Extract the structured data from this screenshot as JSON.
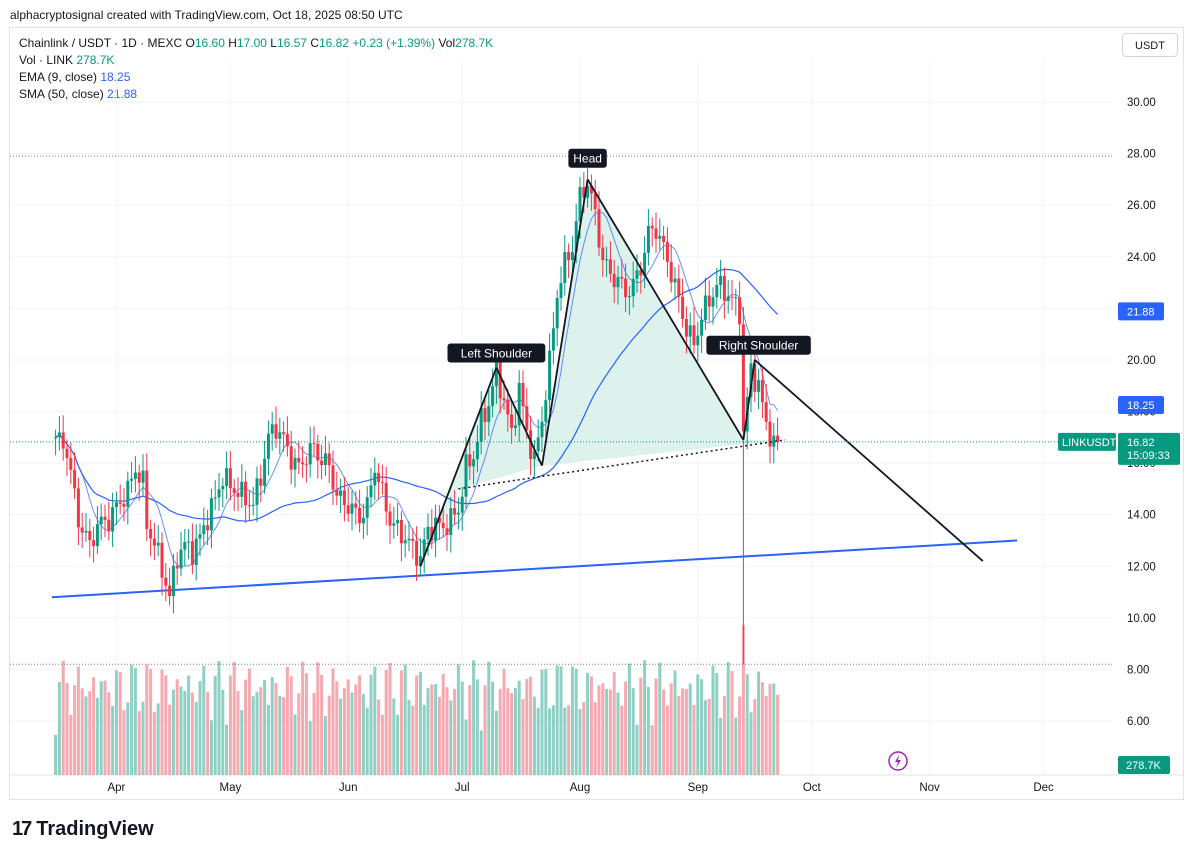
{
  "header": {
    "credit": "alphacryptosignal created with TradingView.com, Oct 18, 2025 08:50 UTC"
  },
  "legend": {
    "symbol": "Chainlink / USDT · 1D · MEXC",
    "o_label": "O",
    "o_val": "16.60",
    "h_label": "H",
    "h_val": "17.00",
    "l_label": "L",
    "l_val": "16.57",
    "c_label": "C",
    "c_val": "16.82",
    "change": "+0.23 (+1.39%)",
    "vol_label": "Vol",
    "vol_val": "278.7K",
    "vol_row_label": "Vol · LINK",
    "vol_row_val": "278.7K",
    "ema_label": "EMA (9, close)",
    "ema_val": "18.25",
    "sma_label": "SMA (50, close)",
    "sma_val": "21.88"
  },
  "currency_button": "USDT",
  "footer": {
    "brand": "TradingView"
  },
  "colors": {
    "up": "#089981",
    "down": "#f23645",
    "ema": "#2962ff",
    "sma": "#2962ff",
    "volume_up": "#8fd0c4",
    "volume_down": "#f7a9b0",
    "support": "#2962ff",
    "pattern_fill": "#d4efe9"
  },
  "chart_data": {
    "type": "candlestick",
    "symbol": "Chainlink / USDT",
    "interval": "1D",
    "ylim": [
      5,
      31
    ],
    "y_ticks": [
      "30.00",
      "28.00",
      "26.00",
      "24.00",
      "22.00",
      "20.00",
      "18.00",
      "16.00",
      "14.00",
      "12.00",
      "10.00",
      "8.00",
      "6.00"
    ],
    "x_ticks": [
      "Apr",
      "May",
      "Jun",
      "Jul",
      "Aug",
      "Sep",
      "Oct",
      "Nov",
      "Dec"
    ],
    "x_tick_days": [
      16,
      46,
      77,
      107,
      138,
      169,
      199,
      230,
      260
    ],
    "x_range_days": [
      -12,
      278
    ],
    "price_series": {
      "start_day": 0,
      "points": [
        [
          0,
          17.0
        ],
        [
          3,
          16.5
        ],
        [
          6,
          13.8
        ],
        [
          9,
          12.8
        ],
        [
          11,
          13.6
        ],
        [
          14,
          13.8
        ],
        [
          16,
          14.3
        ],
        [
          19,
          14.9
        ],
        [
          21,
          15.8
        ],
        [
          23,
          15.2
        ],
        [
          24,
          13.6
        ],
        [
          26,
          12.9
        ],
        [
          28,
          11.9
        ],
        [
          30,
          10.8
        ],
        [
          32,
          12.4
        ],
        [
          34,
          12.8
        ],
        [
          36,
          12.6
        ],
        [
          38,
          13.1
        ],
        [
          40,
          13.9
        ],
        [
          42,
          14.6
        ],
        [
          44,
          15.5
        ],
        [
          46,
          15.1
        ],
        [
          48,
          14.9
        ],
        [
          50,
          14.6
        ],
        [
          52,
          14.4
        ],
        [
          54,
          15.5
        ],
        [
          56,
          17.0
        ],
        [
          58,
          17.4
        ],
        [
          60,
          16.9
        ],
        [
          62,
          16.2
        ],
        [
          64,
          15.8
        ],
        [
          66,
          16.3
        ],
        [
          68,
          16.6
        ],
        [
          70,
          16.1
        ],
        [
          72,
          15.9
        ],
        [
          74,
          14.7
        ],
        [
          76,
          14.5
        ],
        [
          78,
          14.2
        ],
        [
          80,
          13.9
        ],
        [
          82,
          14.3
        ],
        [
          84,
          15.9
        ],
        [
          86,
          14.8
        ],
        [
          88,
          13.8
        ],
        [
          90,
          13.4
        ],
        [
          92,
          13.1
        ],
        [
          94,
          12.7
        ],
        [
          96,
          12.3
        ],
        [
          98,
          13.4
        ],
        [
          100,
          13.6
        ],
        [
          102,
          13.5
        ],
        [
          104,
          13.8
        ],
        [
          106,
          14.2
        ],
        [
          108,
          15.8
        ],
        [
          110,
          16.3
        ],
        [
          112,
          17.6
        ],
        [
          114,
          18.3
        ],
        [
          116,
          19.6
        ],
        [
          118,
          18.4
        ],
        [
          120,
          17.1
        ],
        [
          122,
          18.9
        ],
        [
          124,
          17.2
        ],
        [
          126,
          16.1
        ],
        [
          128,
          17.7
        ],
        [
          130,
          19.9
        ],
        [
          132,
          22.6
        ],
        [
          134,
          23.7
        ],
        [
          136,
          24.4
        ],
        [
          138,
          26.3
        ],
        [
          140,
          26.9
        ],
        [
          142,
          25.6
        ],
        [
          144,
          23.9
        ],
        [
          146,
          23.3
        ],
        [
          148,
          23.1
        ],
        [
          150,
          22.6
        ],
        [
          152,
          22.9
        ],
        [
          154,
          23.6
        ],
        [
          156,
          24.9
        ],
        [
          158,
          25.1
        ],
        [
          160,
          24.3
        ],
        [
          162,
          23.4
        ],
        [
          164,
          22.3
        ],
        [
          166,
          21.2
        ],
        [
          168,
          20.6
        ],
        [
          170,
          21.7
        ],
        [
          172,
          22.3
        ],
        [
          174,
          22.9
        ],
        [
          176,
          22.7
        ],
        [
          178,
          22.3
        ],
        [
          180,
          21.9
        ],
        [
          181,
          17.1
        ],
        [
          183,
          19.7
        ],
        [
          185,
          18.9
        ],
        [
          187,
          17.6
        ],
        [
          189,
          16.6
        ],
        [
          190,
          16.82
        ]
      ]
    },
    "volume_label": "278.7K",
    "current_price": "16.82",
    "current_price_label": "LINKUSDT",
    "countdown": "15:09:33",
    "ema_value": "18.25",
    "sma_value": "21.88",
    "price_lines": [
      27.9,
      8.2,
      16.82
    ],
    "annotations": [
      "Head",
      "Left Shoulder",
      "Right Shoulder"
    ]
  }
}
